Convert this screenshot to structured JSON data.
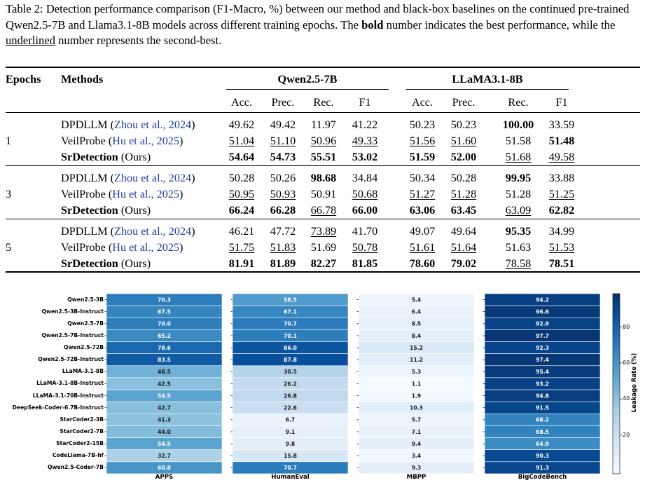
{
  "caption": {
    "prefix": "Table 2: Detection performance comparison (F1-Macro, %) between our method and black-box baselines on the continued pre-trained Qwen2.5-7B and Llama3.1-8B models across different training epochs. The ",
    "bold_word": "bold",
    "middle": " number indicates the best performance, while the ",
    "underline_word": "underlined",
    "suffix": " number represents the second-best."
  },
  "table": {
    "col_epochs": "Epochs",
    "col_methods": "Methods",
    "group1": "Qwen2.5-7B",
    "group2": "LLaMA3.1-8B",
    "metrics": [
      "Acc.",
      "Prec.",
      "Rec.",
      "F1",
      "Acc.",
      "Prec.",
      "Rec.",
      "F1"
    ],
    "blocks": [
      {
        "epoch": "1",
        "rows": [
          {
            "name": "DPDLLM",
            "cite": "Zhou et al., 2024",
            "bold_name": false,
            "values": [
              "49.62",
              "49.42",
              "11.97",
              "41.22",
              "50.23",
              "50.23",
              "100.00",
              "33.59"
            ],
            "styles": [
              "",
              "",
              "",
              "",
              "",
              "",
              "b",
              ""
            ]
          },
          {
            "name": "VeilProbe",
            "cite": "Hu et al., 2025",
            "bold_name": false,
            "values": [
              "51.04",
              "51.10",
              "50.96",
              "49.33",
              "51.56",
              "51.60",
              "51.58",
              "51.48"
            ],
            "styles": [
              "u",
              "u",
              "u",
              "u",
              "u",
              "u",
              "",
              "b"
            ]
          },
          {
            "name": "SrDetection",
            "suffix": "(Ours)",
            "bold_name": true,
            "values": [
              "54.64",
              "54.73",
              "55.51",
              "53.02",
              "51.59",
              "52.00",
              "51.68",
              "49.58"
            ],
            "styles": [
              "b",
              "b",
              "b",
              "b",
              "b",
              "b",
              "u",
              "u"
            ]
          }
        ]
      },
      {
        "epoch": "3",
        "rows": [
          {
            "name": "DPDLLM",
            "cite": "Zhou et al., 2024",
            "bold_name": false,
            "values": [
              "50.28",
              "50.26",
              "98.68",
              "34.84",
              "50.34",
              "50.28",
              "99.95",
              "33.88"
            ],
            "styles": [
              "",
              "",
              "b",
              "",
              "",
              "",
              "b",
              ""
            ]
          },
          {
            "name": "VeilProbe",
            "cite": "Hu et al., 2025",
            "bold_name": false,
            "values": [
              "50.95",
              "50.93",
              "50.91",
              "50.68",
              "51.27",
              "51.28",
              "51.28",
              "51.25"
            ],
            "styles": [
              "u",
              "u",
              "",
              "u",
              "u",
              "u",
              "",
              "u"
            ]
          },
          {
            "name": "SrDetection",
            "suffix": "(Ours)",
            "bold_name": true,
            "values": [
              "66.24",
              "66.28",
              "66.78",
              "66.00",
              "63.06",
              "63.45",
              "63.09",
              "62.82"
            ],
            "styles": [
              "b",
              "b",
              "u",
              "b",
              "b",
              "b",
              "u",
              "b"
            ]
          }
        ]
      },
      {
        "epoch": "5",
        "rows": [
          {
            "name": "DPDLLM",
            "cite": "Zhou et al., 2024",
            "bold_name": false,
            "values": [
              "46.21",
              "47.72",
              "73.89",
              "41.70",
              "49.07",
              "49.64",
              "95.35",
              "34.99"
            ],
            "styles": [
              "",
              "",
              "u",
              "",
              "",
              "",
              "b",
              ""
            ]
          },
          {
            "name": "VeilProbe",
            "cite": "Hu et al., 2025",
            "bold_name": false,
            "values": [
              "51.75",
              "51.83",
              "51.69",
              "50.78",
              "51.61",
              "51.64",
              "51.63",
              "51.53"
            ],
            "styles": [
              "u",
              "u",
              "",
              "u",
              "u",
              "u",
              "",
              "u"
            ]
          },
          {
            "name": "SrDetection",
            "suffix": "(Ours)",
            "bold_name": true,
            "values": [
              "81.91",
              "81.89",
              "82.27",
              "81.85",
              "78.60",
              "79.02",
              "78.58",
              "78.51"
            ],
            "styles": [
              "b",
              "b",
              "b",
              "b",
              "b",
              "b",
              "u",
              "b"
            ]
          }
        ]
      }
    ]
  },
  "chart_data": {
    "type": "heatmap",
    "rows": [
      "Qwen2.5-3B",
      "Qwen2.5-3B-Instruct",
      "Qwen2.5-7B",
      "Qwen2.5-7B-Instruct",
      "Qwen2.5-72B",
      "Qwen2.5-72B-Instruct",
      "LLaMA-3.1-8B",
      "LLaMA-3.1-8B-Instruct",
      "LLaMA-3.1-70B-Instruct",
      "DeepSeek-Coder-6.7B-Instruct",
      "StarCoder2-3B",
      "StarCoder2-7B",
      "StarCoder2-15B",
      "CodeLlama-7B-hf",
      "Qwen2.5-Coder-7B"
    ],
    "columns": [
      "APPS",
      "HumanEval",
      "MBPP",
      "BigCodeBench"
    ],
    "values": [
      [
        70.3,
        58.5,
        5.4,
        94.2
      ],
      [
        67.5,
        67.1,
        6.4,
        96.6
      ],
      [
        70.0,
        70.7,
        8.5,
        92.9
      ],
      [
        65.2,
        70.1,
        8.4,
        97.7
      ],
      [
        78.6,
        86.0,
        15.2,
        92.3
      ],
      [
        83.5,
        87.8,
        11.2,
        97.4
      ],
      [
        48.5,
        30.5,
        5.3,
        95.4
      ],
      [
        42.5,
        26.2,
        1.1,
        93.2
      ],
      [
        54.5,
        26.8,
        1.9,
        94.8
      ],
      [
        42.7,
        22.6,
        10.3,
        91.5
      ],
      [
        41.3,
        6.7,
        5.7,
        68.2
      ],
      [
        44.0,
        9.1,
        7.1,
        68.5
      ],
      [
        54.5,
        9.8,
        9.4,
        64.9
      ],
      [
        32.7,
        15.8,
        3.4,
        90.3
      ],
      [
        60.8,
        70.7,
        9.3,
        91.3
      ]
    ],
    "colorbar_label": "Leakage Rate (%)",
    "colorbar_ticks": [
      20,
      40,
      60,
      80
    ],
    "colorbar_range": [
      0,
      100
    ],
    "colormap": "Blues"
  }
}
